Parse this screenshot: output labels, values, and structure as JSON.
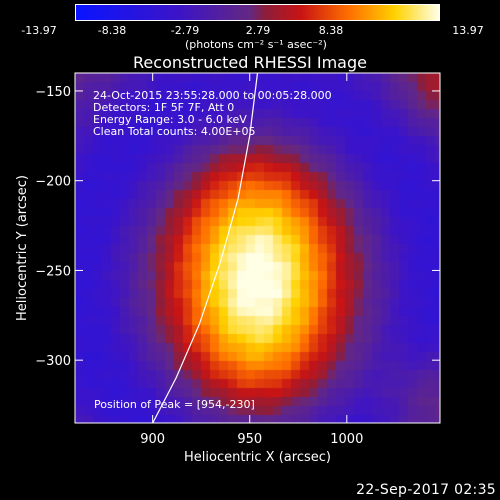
{
  "colorbar": {
    "ticks": [
      "-13.97",
      "-8.38",
      "-2.79",
      "2.79",
      "8.38",
      "13.97"
    ],
    "units": "(photons cm⁻² s⁻¹ asec⁻²)",
    "range": [
      -13.97,
      13.97
    ]
  },
  "chart_data": {
    "type": "heatmap",
    "title": "Reconstructed RHESSI Image",
    "xlabel": "Heliocentric X (arcsec)",
    "ylabel": "Heliocentric Y (arcsec)",
    "xlim": [
      860,
      1048
    ],
    "ylim": [
      -335,
      -140
    ],
    "xticks": [
      900,
      950,
      1000
    ],
    "yticks": [
      -150,
      -200,
      -250,
      -300
    ],
    "annotations": [
      "24-Oct-2015 23:55:28.000 to 00:05:28.000",
      "Detectors: 1F 5F 7F, Att 0",
      "Energy Range: 3.0 - 6.0 keV",
      "Clean    Total counts: 4.00E+05"
    ],
    "peak_label": "Position of Peak = [954,-230]",
    "peak": [
      954,
      -230
    ],
    "limb_curve_x": [
      954,
      950,
      944,
      935,
      924,
      912,
      900,
      888
    ],
    "limb_curve_y": [
      -140,
      -175,
      -210,
      -245,
      -280,
      -310,
      -335,
      -360
    ]
  },
  "footer": "22-Sep-2017 02:35"
}
